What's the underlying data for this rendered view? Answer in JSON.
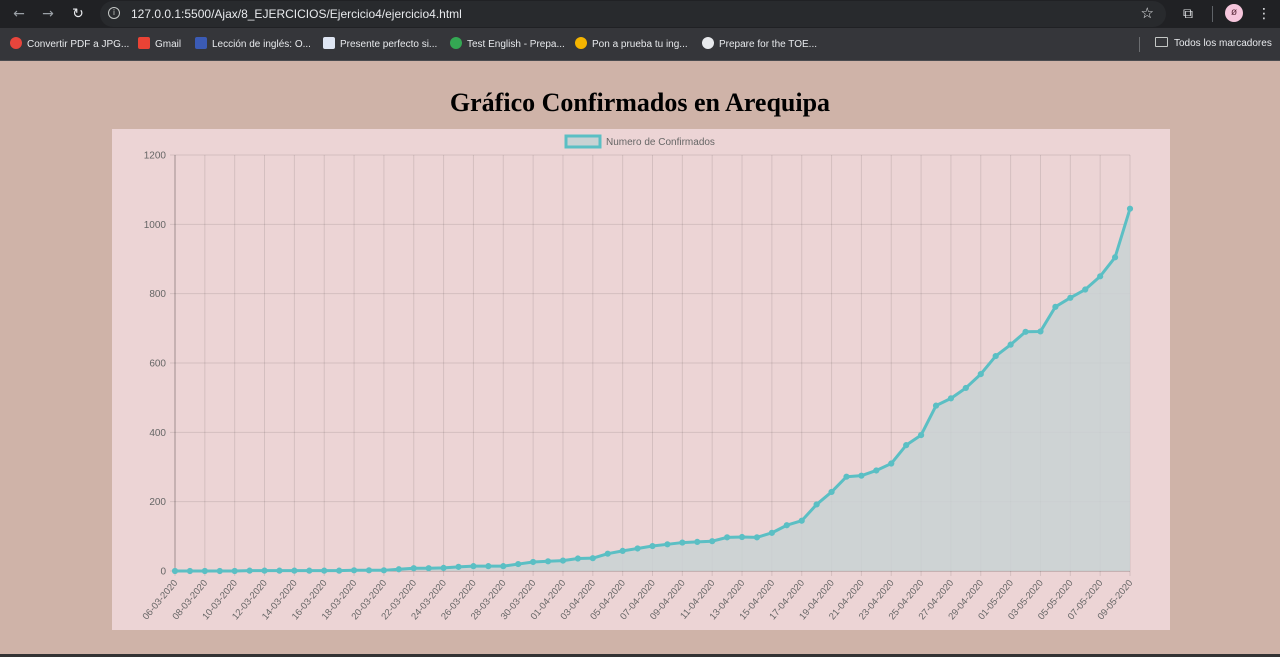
{
  "browser": {
    "url": "127.0.0.1:5500/Ajax/8_EJERCICIOS/Ejercicio4/ejercicio4.html",
    "avatar_letter": "ø",
    "bookmarks": [
      {
        "label": "Convertir PDF a JPG...",
        "color": "#e8453c"
      },
      {
        "label": "Gmail",
        "color": "#ea4335"
      },
      {
        "label": "Lección de inglés: O...",
        "color": "#3b5bb5"
      },
      {
        "label": "Presente perfecto si...",
        "color": "#dfe6f3"
      },
      {
        "label": "Test English - Prepa...",
        "color": "#34a853"
      },
      {
        "label": "Pon a prueba tu ing...",
        "color": "#f4b400"
      },
      {
        "label": "Prepare for the TOE...",
        "color": "#e8eaed"
      }
    ],
    "all_bookmarks_label": "Todos los marcadores"
  },
  "page": {
    "title": "Gráfico Confirmados en Arequipa",
    "background": "#cfb3a8",
    "chart_background": "#ecd4d5"
  },
  "chart_data": {
    "type": "area",
    "legend": "Numero de Confirmados",
    "legend_position": "top-center",
    "line_color": "#5bbfc4",
    "fill_color": "#c9d2d3",
    "ylim": [
      0,
      1200
    ],
    "yticks": [
      0,
      200,
      400,
      600,
      800,
      1000,
      1200
    ],
    "grid": true,
    "x_tick_labels": [
      "06-03-2020",
      "08-03-2020",
      "10-03-2020",
      "12-03-2020",
      "14-03-2020",
      "16-03-2020",
      "18-03-2020",
      "20-03-2020",
      "22-03-2020",
      "24-03-2020",
      "26-03-2020",
      "28-03-2020",
      "30-03-2020",
      "01-04-2020",
      "03-04-2020",
      "05-04-2020",
      "07-04-2020",
      "09-04-2020",
      "11-04-2020",
      "13-04-2020",
      "15-04-2020",
      "17-04-2020",
      "19-04-2020",
      "21-04-2020",
      "23-04-2020",
      "25-04-2020",
      "27-04-2020",
      "29-04-2020",
      "01-05-2020",
      "03-05-2020",
      "05-05-2020",
      "07-05-2020",
      "09-05-2020"
    ],
    "values": [
      0,
      0,
      0,
      0,
      0,
      1,
      1,
      1,
      1,
      1,
      1,
      1,
      2,
      2,
      2,
      5,
      8,
      8,
      9,
      12,
      14,
      14,
      14,
      20,
      26,
      28,
      30,
      36,
      37,
      50,
      58,
      65,
      72,
      77,
      82,
      84,
      86,
      97,
      98,
      97,
      110,
      132,
      145,
      192,
      228,
      272,
      275,
      290,
      310,
      363,
      392,
      477,
      498,
      528,
      568,
      620,
      653,
      690,
      691,
      762,
      788,
      812,
      850,
      905,
      1045
    ]
  }
}
